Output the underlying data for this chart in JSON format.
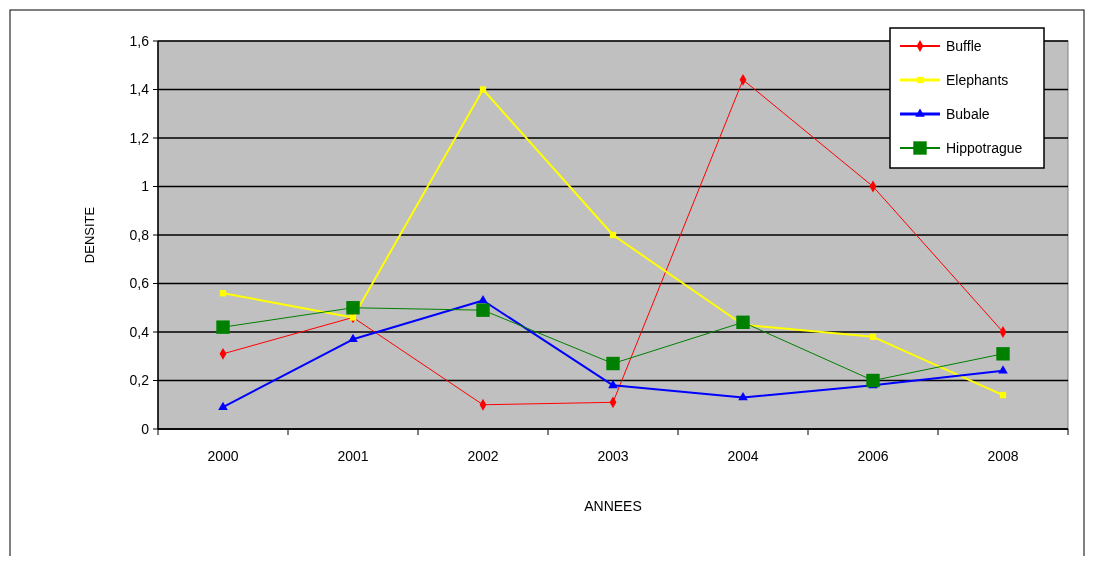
{
  "chart_data": {
    "type": "line",
    "xlabel": "ANNEES",
    "ylabel": "DENSITE",
    "categories": [
      "2000",
      "2001",
      "2002",
      "2003",
      "2004",
      "2006",
      "2008"
    ],
    "series": [
      {
        "name": "Buffle",
        "color": "#ff0000",
        "values": [
          0.31,
          0.46,
          0.1,
          0.11,
          1.44,
          1.0,
          0.4
        ],
        "marker": "diamond"
      },
      {
        "name": "Elephants",
        "color": "#ffff00",
        "values": [
          0.56,
          0.46,
          1.4,
          0.8,
          0.43,
          0.38,
          0.14
        ],
        "marker": "square"
      },
      {
        "name": "Bubale",
        "color": "#0000ff",
        "values": [
          0.09,
          0.37,
          0.53,
          0.18,
          0.13,
          0.18,
          0.24
        ],
        "marker": "triangle"
      },
      {
        "name": "Hippotrague",
        "color": "#008000",
        "values": [
          0.42,
          0.5,
          0.49,
          0.27,
          0.44,
          0.2,
          0.31
        ],
        "marker": "square"
      }
    ],
    "ylim": [
      0,
      1.6
    ],
    "yticks": [
      0,
      {
        "value": 0.2,
        "label": "0,2"
      },
      {
        "value": 0.4,
        "label": "0,4"
      },
      {
        "value": 0.6,
        "label": "0,6"
      },
      {
        "value": 0.8,
        "label": "0,8"
      },
      1,
      {
        "value": 1.2,
        "label": "1,2"
      },
      {
        "value": 1.4,
        "label": "1,4"
      },
      {
        "value": 1.6,
        "label": "1,6"
      }
    ],
    "grid": "y",
    "legend": "top right",
    "line_style": "solid"
  }
}
